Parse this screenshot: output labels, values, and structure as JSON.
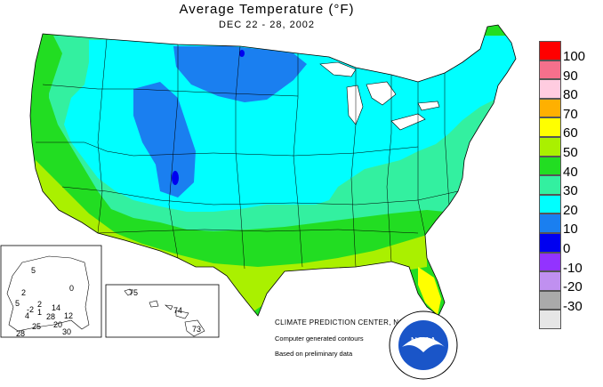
{
  "header": {
    "title": "Average Temperature (°F)",
    "subtitle": "DEC 22 - 28, 2002"
  },
  "legend": {
    "items": [
      {
        "label": "100",
        "color": "#ff0000"
      },
      {
        "label": "90",
        "color": "#f5708c"
      },
      {
        "label": "80",
        "color": "#ffcce0"
      },
      {
        "label": "70",
        "color": "#ffb000"
      },
      {
        "label": "60",
        "color": "#ffff00"
      },
      {
        "label": "50",
        "color": "#aaf000"
      },
      {
        "label": "40",
        "color": "#22dd22"
      },
      {
        "label": "30",
        "color": "#33f0a0"
      },
      {
        "label": "20",
        "color": "#00ffff"
      },
      {
        "label": "10",
        "color": "#1a7ff0"
      },
      {
        "label": "0",
        "color": "#0000f0"
      },
      {
        "label": "-10",
        "color": "#9333ff"
      },
      {
        "label": "-20",
        "color": "#c090f0"
      },
      {
        "label": "-30",
        "color": "#aaaaaa"
      },
      {
        "label": "",
        "color": "#e6e6e6"
      }
    ]
  },
  "credits": {
    "center": "CLIMATE PREDICTION CENTER, NOAA",
    "line2": "Computer generated contours",
    "line3": "Based on preliminary data"
  },
  "alaska_inset": {
    "labels": [
      "5",
      "2",
      "0",
      "5",
      "2",
      "4",
      "14",
      "1",
      "28",
      "12",
      "25",
      "20",
      "28",
      "30",
      "-2"
    ]
  },
  "hawaii_inset": {
    "labels": [
      "75",
      "74",
      "73"
    ]
  },
  "logo": {
    "text": "NOAA"
  }
}
